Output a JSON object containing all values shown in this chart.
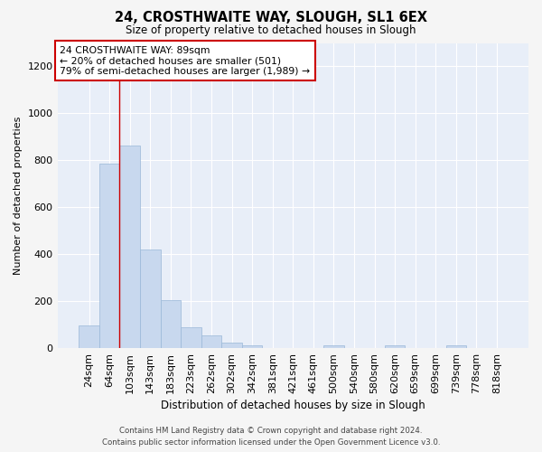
{
  "title": "24, CROSTHWAITE WAY, SLOUGH, SL1 6EX",
  "subtitle": "Size of property relative to detached houses in Slough",
  "xlabel": "Distribution of detached houses by size in Slough",
  "ylabel": "Number of detached properties",
  "bar_color": "#c8d8ee",
  "bar_edge_color": "#9ab8d8",
  "background_color": "#e8eef8",
  "grid_color": "#ffffff",
  "categories": [
    "24sqm",
    "64sqm",
    "103sqm",
    "143sqm",
    "183sqm",
    "223sqm",
    "262sqm",
    "302sqm",
    "342sqm",
    "381sqm",
    "421sqm",
    "461sqm",
    "500sqm",
    "540sqm",
    "580sqm",
    "620sqm",
    "659sqm",
    "699sqm",
    "739sqm",
    "778sqm",
    "818sqm"
  ],
  "values": [
    95,
    785,
    863,
    420,
    203,
    87,
    55,
    22,
    10,
    0,
    0,
    0,
    10,
    0,
    0,
    10,
    0,
    0,
    10,
    0,
    0
  ],
  "ylim": [
    0,
    1300
  ],
  "yticks": [
    0,
    200,
    400,
    600,
    800,
    1000,
    1200
  ],
  "property_line_x": 1.5,
  "annotation_text": "24 CROSTHWAITE WAY: 89sqm\n← 20% of detached houses are smaller (501)\n79% of semi-detached houses are larger (1,989) →",
  "annotation_box_color": "#ffffff",
  "annotation_box_edge": "#cc0000",
  "property_line_color": "#cc0000",
  "fig_bg_color": "#f5f5f5",
  "footer_line1": "Contains HM Land Registry data © Crown copyright and database right 2024.",
  "footer_line2": "Contains public sector information licensed under the Open Government Licence v3.0."
}
